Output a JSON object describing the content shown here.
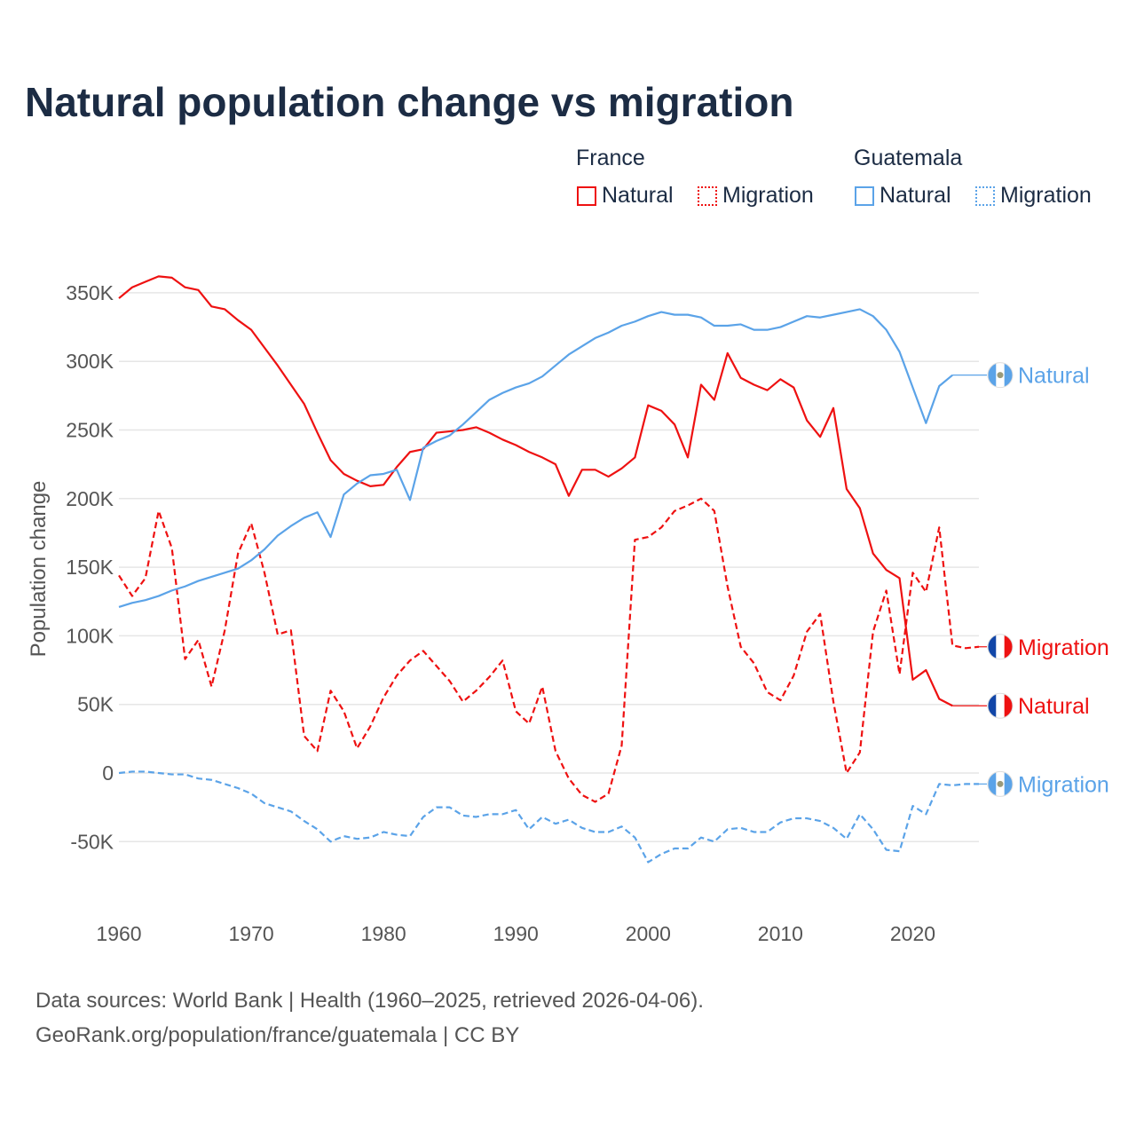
{
  "chart_data": {
    "type": "line",
    "title": "Natural population change vs migration",
    "xlabel": "",
    "ylabel": "Population change",
    "xlim": [
      1960,
      2025
    ],
    "ylim": [
      -90000,
      370000
    ],
    "x_ticks": [
      "1960",
      "1970",
      "1980",
      "1990",
      "2000",
      "2010",
      "2020"
    ],
    "y_ticks": [
      {
        "v": 350000,
        "label": "350K"
      },
      {
        "v": 300000,
        "label": "300K"
      },
      {
        "v": 250000,
        "label": "250K"
      },
      {
        "v": 200000,
        "label": "200K"
      },
      {
        "v": 150000,
        "label": "150K"
      },
      {
        "v": 100000,
        "label": "100K"
      },
      {
        "v": 50000,
        "label": "50K"
      },
      {
        "v": 0,
        "label": "0"
      },
      {
        "v": -50000,
        "label": "-50K"
      }
    ],
    "grid": true,
    "legend_placement": "top-right",
    "legend": {
      "groups": [
        {
          "name": "France",
          "items": [
            "Natural",
            "Migration"
          ]
        },
        {
          "name": "Guatemala",
          "items": [
            "Natural",
            "Migration"
          ]
        }
      ]
    },
    "x_start": 1960,
    "series": [
      {
        "name": "Natural",
        "country": "France",
        "color": "#ee1111",
        "dash": false,
        "end_label": "Natural",
        "values": [
          346,
          354,
          358,
          362,
          361,
          354,
          352,
          340,
          338,
          330,
          323,
          310,
          297,
          283,
          269,
          248,
          228,
          218,
          213,
          209,
          210,
          223,
          234,
          236,
          248,
          249,
          250,
          252,
          248,
          243,
          239,
          234,
          230,
          225,
          202,
          221,
          221,
          216,
          222,
          230,
          268,
          264,
          254,
          230,
          283,
          272,
          306,
          288,
          283,
          279,
          287,
          281,
          257,
          245,
          266,
          207,
          193,
          160,
          148,
          142,
          68,
          75,
          54,
          49
        ]
      },
      {
        "name": "Migration",
        "country": "France",
        "color": "#ee1111",
        "dash": true,
        "end_label": "Migration",
        "values": [
          144,
          129,
          142,
          191,
          164,
          83,
          97,
          63,
          104,
          160,
          182,
          146,
          101,
          104,
          27,
          16,
          60,
          45,
          18,
          34,
          55,
          71,
          82,
          89,
          78,
          67,
          52,
          60,
          70,
          82,
          45,
          36,
          63,
          16,
          -4,
          -16,
          -21,
          -15,
          20,
          170,
          172,
          179,
          191,
          195,
          200,
          191,
          136,
          92,
          80,
          59,
          53,
          71,
          103,
          116,
          52,
          0,
          15,
          103,
          133,
          72,
          146,
          132,
          179,
          93,
          91,
          92
        ]
      },
      {
        "name": "Natural",
        "country": "Guatemala",
        "color": "#5ba3e8",
        "dash": false,
        "end_label": "Natural",
        "values": [
          121,
          124,
          126,
          129,
          133,
          136,
          140,
          143,
          146,
          149,
          155,
          163,
          173,
          180,
          186,
          190,
          172,
          203,
          211,
          217,
          218,
          221,
          199,
          237,
          242,
          246,
          254,
          263,
          272,
          277,
          281,
          284,
          289,
          297,
          305,
          311,
          317,
          321,
          326,
          329,
          333,
          336,
          334,
          334,
          332,
          326,
          326,
          327,
          323,
          323,
          325,
          329,
          333,
          332,
          334,
          336,
          338,
          333,
          323,
          307,
          281,
          255,
          282,
          290
        ]
      },
      {
        "name": "Migration",
        "country": "Guatemala",
        "color": "#5ba3e8",
        "dash": true,
        "end_label": "Migration",
        "values": [
          0,
          1,
          1,
          0,
          -1,
          -1,
          -4,
          -5,
          -8,
          -11,
          -15,
          -22,
          -25,
          -28,
          -35,
          -41,
          -50,
          -46,
          -48,
          -47,
          -43,
          -45,
          -46,
          -32,
          -25,
          -25,
          -31,
          -32,
          -30,
          -30,
          -27,
          -41,
          -32,
          -37,
          -34,
          -40,
          -43,
          -43,
          -39,
          -47,
          -65,
          -59,
          -55,
          -55,
          -47,
          -50,
          -41,
          -40,
          -43,
          -43,
          -36,
          -33,
          -33,
          -35,
          -40,
          -48,
          -30,
          -41,
          -56,
          -57,
          -24,
          -30,
          -8,
          -9,
          -8,
          -8
        ]
      }
    ],
    "value_unit": "thousands",
    "footer": [
      "Data sources: World Bank | Health (1960–2025, retrieved 2026-04-06).",
      "GeoRank.org/population/france/guatemala | CC BY"
    ]
  }
}
